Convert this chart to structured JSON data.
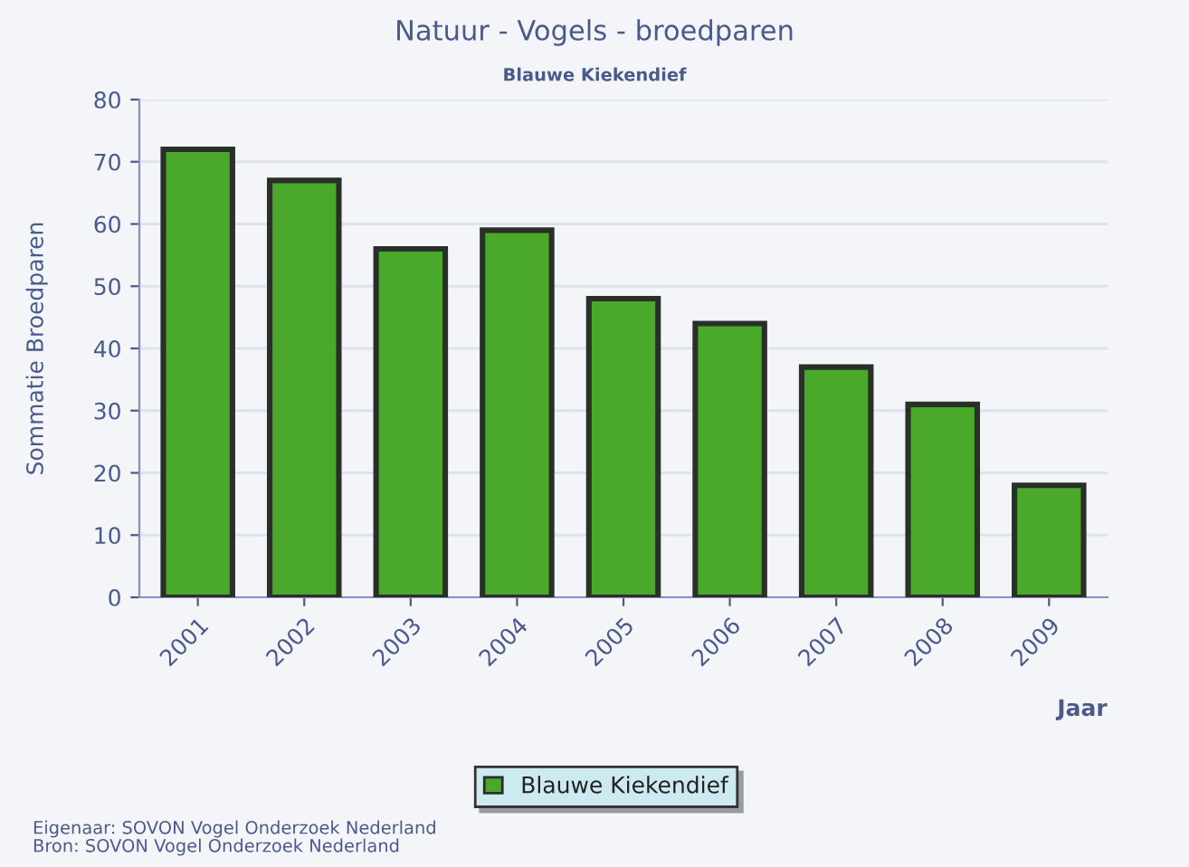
{
  "chart_data": {
    "type": "bar",
    "title": "Natuur - Vogels - broedparen",
    "subtitle": "Blauwe Kiekendief",
    "xlabel": "Jaar",
    "ylabel": "Sommatie Broedparen",
    "categories": [
      "2001",
      "2002",
      "2003",
      "2004",
      "2005",
      "2006",
      "2007",
      "2008",
      "2009"
    ],
    "series": [
      {
        "name": "Blauwe Kiekendief",
        "color": "#4aa82a",
        "values": [
          72,
          67,
          56,
          59,
          48,
          44,
          37,
          31,
          18
        ]
      }
    ],
    "ylim": [
      0,
      80
    ],
    "yticks": [
      0,
      10,
      20,
      30,
      40,
      50,
      60,
      70,
      80
    ],
    "grid": "y",
    "legend": "bottom",
    "annotations": [
      "Eigenaar: SOVON Vogel Onderzoek Nederland",
      "Bron: SOVON Vogel Onderzoek Nederland"
    ]
  }
}
